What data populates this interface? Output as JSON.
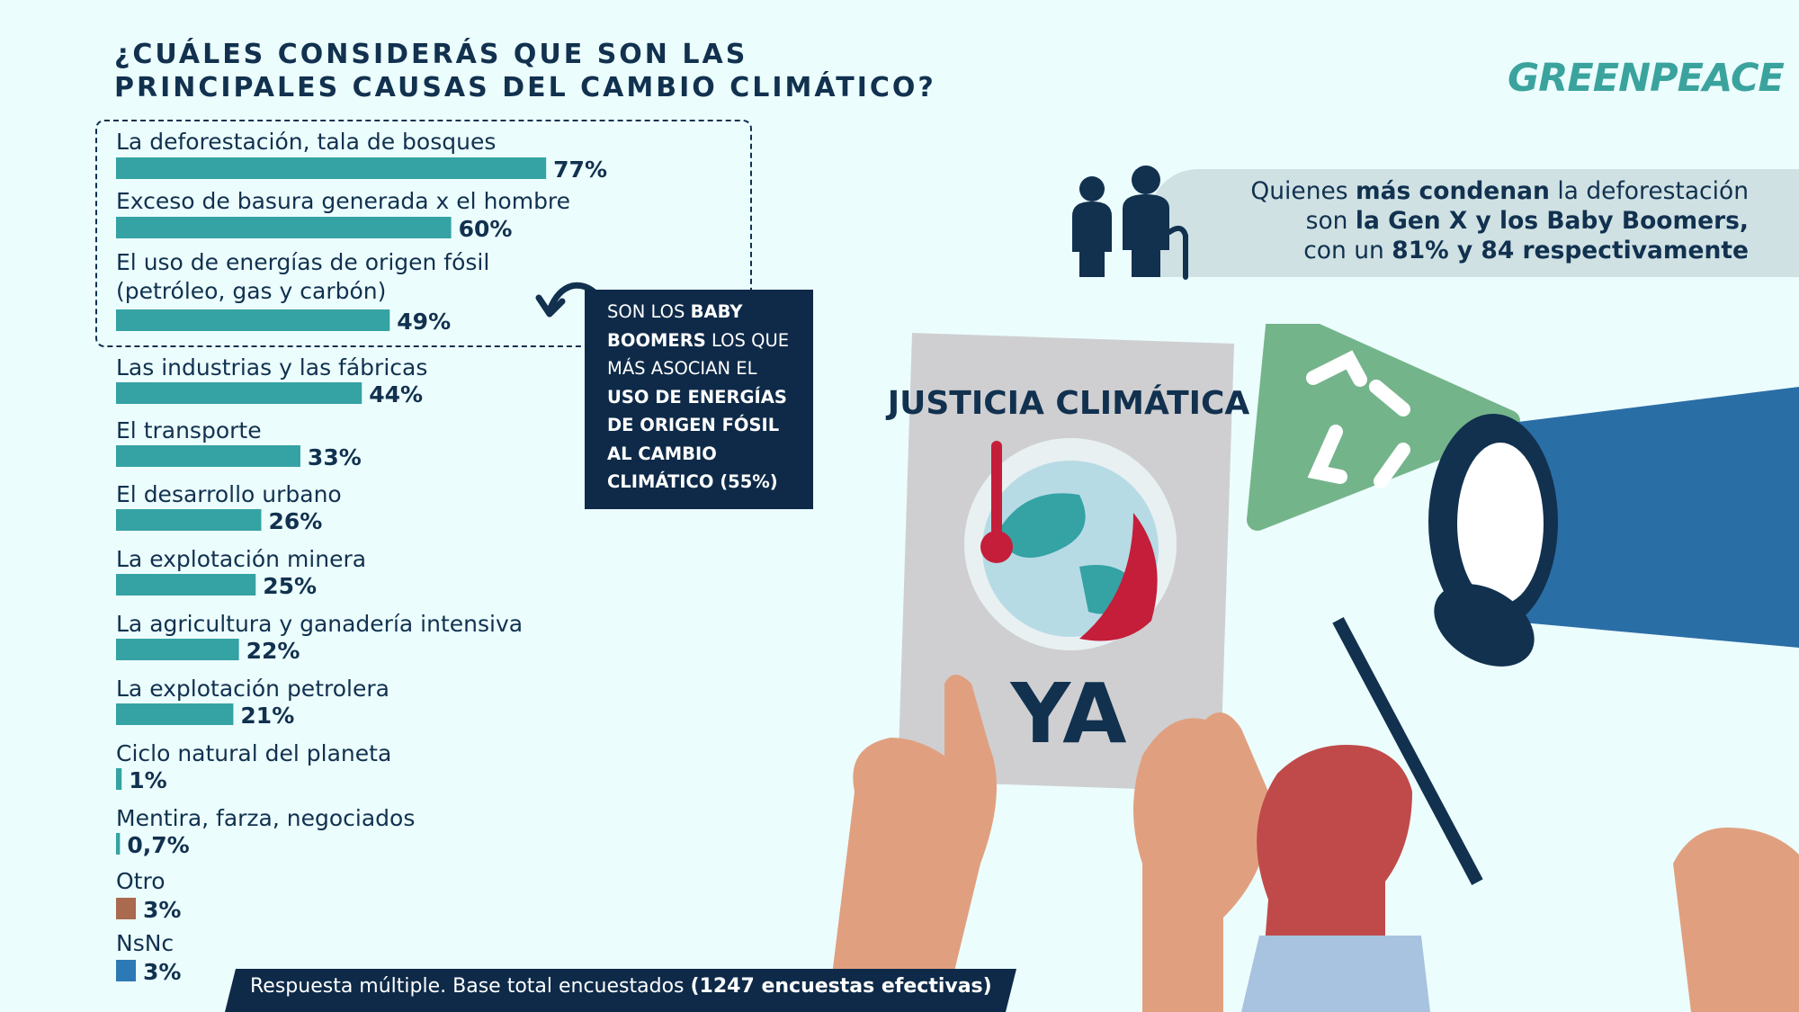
{
  "title": {
    "line1": "¿CUÁLES CONSIDERÁS QUE SON LAS",
    "line2": "PRINCIPALES CAUSAS DEL CAMBIO CLIMÁTICO?"
  },
  "logo": "GREENPEACE",
  "chart_data": {
    "type": "bar",
    "orientation": "horizontal",
    "value_suffix": "%",
    "categories": [
      "La deforestación, tala de bosques",
      "Exceso de basura generada x el hombre",
      "El uso de energías de origen fósil (petróleo, gas y carbón)",
      "Las industrias y las fábricas",
      "El transporte",
      "El desarrollo urbano",
      "La explotación minera",
      "La agricultura y ganadería intensiva",
      "La explotación petrolera",
      "Ciclo natural del planeta",
      "Mentira, farza, negociados",
      "Otro",
      "NsNc"
    ],
    "category_lines": [
      [
        "La deforestación, tala de bosques"
      ],
      [
        "Exceso de basura generada x el hombre"
      ],
      [
        "El uso de energías de origen fósil",
        "(petróleo, gas y carbón)"
      ],
      [
        "Las industrias y las fábricas"
      ],
      [
        "El transporte"
      ],
      [
        "El desarrollo urbano"
      ],
      [
        "La explotación minera"
      ],
      [
        "La agricultura y ganadería intensiva"
      ],
      [
        "La explotación petrolera"
      ],
      [
        "Ciclo natural del planeta"
      ],
      [
        "Mentira, farza, negociados"
      ],
      [
        "Otro"
      ],
      [
        "NsNc"
      ]
    ],
    "values": [
      77,
      60,
      49,
      44,
      33,
      26,
      25,
      22,
      21,
      1,
      0.7,
      3,
      3
    ],
    "value_labels": [
      "77%",
      "60%",
      "49%",
      "44%",
      "33%",
      "26%",
      "25%",
      "22%",
      "21%",
      "1%",
      "0,7%",
      "3%",
      "3%"
    ],
    "bar_colors": [
      "#35a2a4",
      "#35a2a4",
      "#35a2a4",
      "#35a2a4",
      "#35a2a4",
      "#35a2a4",
      "#35a2a4",
      "#35a2a4",
      "#35a2a4",
      "#35a2a4",
      "#35a2a4",
      "#a96a4f",
      "#2c7ab5"
    ],
    "highlighted": [
      0,
      1,
      2
    ],
    "xlim": [
      0,
      100
    ]
  },
  "callout": {
    "p1": "SON LOS ",
    "b1": "BABY BOOMERS",
    "p2": " LOS QUE MÁS ASOCIAN EL ",
    "b2": "USO DE ENERGÍAS DE ORIGEN FÓSIL AL CAMBIO CLIMÁTICO (55%)"
  },
  "generations": {
    "p1": "Quienes ",
    "b1": "más condenan",
    "p2": " la deforestación",
    "p3": "son ",
    "b2": "la Gen X y los Baby Boomers,",
    "p4": "con un ",
    "b3": "81% y 84 respectivamente"
  },
  "sign": {
    "line1": "JUSTICIA CLIMÁTICA",
    "line2": "YA"
  },
  "footer": {
    "text": "Respuesta múltiple. Base total encuestados ",
    "bold": "(1247 encuestas efectivas)"
  },
  "colors": {
    "background": "#ecfdfd",
    "navy": "#11314f",
    "teal": "#35a2a4",
    "otro": "#a96a4f",
    "nsnc": "#2c7ab5"
  }
}
